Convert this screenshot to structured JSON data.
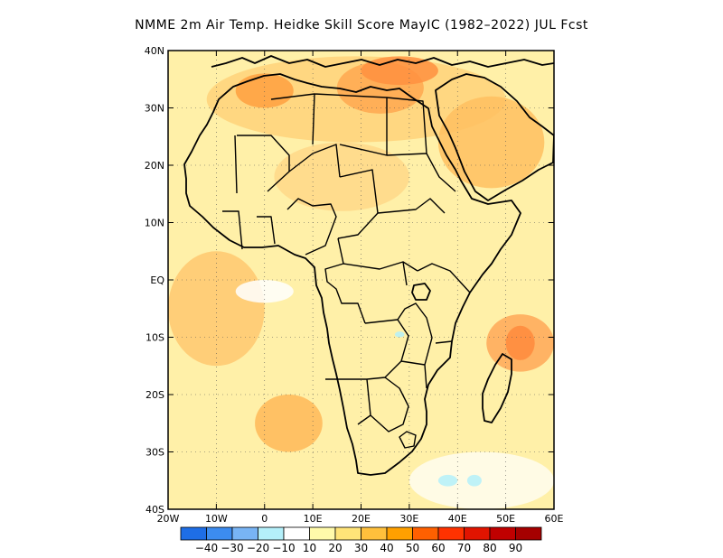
{
  "title": "NMME 2m Air Temp. Heidke Skill Score MayIC (1982–2022) JUL Fcst",
  "map": {
    "lon_range": [
      -20,
      60
    ],
    "lat_range": [
      -40,
      40
    ],
    "x_ticks": [
      {
        "lon": -20,
        "label": "20W"
      },
      {
        "lon": -10,
        "label": "10W"
      },
      {
        "lon": 0,
        "label": "0"
      },
      {
        "lon": 10,
        "label": "10E"
      },
      {
        "lon": 20,
        "label": "20E"
      },
      {
        "lon": 30,
        "label": "30E"
      },
      {
        "lon": 40,
        "label": "40E"
      },
      {
        "lon": 50,
        "label": "50E"
      },
      {
        "lon": 60,
        "label": "60E"
      }
    ],
    "y_ticks": [
      {
        "lat": 40,
        "label": "40N"
      },
      {
        "lat": 30,
        "label": "30N"
      },
      {
        "lat": 20,
        "label": "20N"
      },
      {
        "lat": 10,
        "label": "10N"
      },
      {
        "lat": 0,
        "label": "EQ"
      },
      {
        "lat": -10,
        "label": "10S"
      },
      {
        "lat": -20,
        "label": "20S"
      },
      {
        "lat": -30,
        "label": "30S"
      },
      {
        "lat": -40,
        "label": "40S"
      }
    ]
  },
  "colorbar": {
    "bins": [
      {
        "color": "#1e6ee6"
      },
      {
        "color": "#3c8cf0"
      },
      {
        "color": "#78b4f5"
      },
      {
        "color": "#b4f0fa"
      },
      {
        "color": "#ffffff"
      },
      {
        "color": "#fffaaa"
      },
      {
        "color": "#ffe478"
      },
      {
        "color": "#ffc03c"
      },
      {
        "color": "#ffa000"
      },
      {
        "color": "#ff6000"
      },
      {
        "color": "#ff3200"
      },
      {
        "color": "#e11400"
      },
      {
        "color": "#c00000"
      },
      {
        "color": "#a50000"
      }
    ],
    "labels": [
      "-40",
      "-30",
      "-20",
      "-10",
      "10",
      "20",
      "30",
      "40",
      "50",
      "60",
      "70",
      "80",
      "90"
    ]
  },
  "field": {
    "base_color": "#fff0a8",
    "patches": [
      {
        "name": "north-africa-band",
        "color": "#ffd27a",
        "lon": [
          -12,
          50
        ],
        "lat": [
          24,
          39
        ]
      },
      {
        "name": "libya-egypt-high",
        "color": "#ffa850",
        "lon": [
          15,
          33
        ],
        "lat": [
          29,
          38
        ]
      },
      {
        "name": "morocco-high",
        "color": "#ffa040",
        "lon": [
          -6,
          6
        ],
        "lat": [
          30,
          36
        ]
      },
      {
        "name": "mediterranean-high",
        "color": "#ff9040",
        "lon": [
          20,
          36
        ],
        "lat": [
          34,
          39
        ]
      },
      {
        "name": "arabia-warm",
        "color": "#ffc060",
        "lon": [
          36,
          58
        ],
        "lat": [
          16,
          32
        ]
      },
      {
        "name": "sahel-warm",
        "color": "#ffd888",
        "lon": [
          2,
          30
        ],
        "lat": [
          12,
          24
        ]
      },
      {
        "name": "atlantic-warm",
        "color": "#ffc870",
        "lon": [
          -20,
          0
        ],
        "lat": [
          -15,
          5
        ]
      },
      {
        "name": "atlantic-south-warm",
        "color": "#ffb858",
        "lon": [
          -2,
          12
        ],
        "lat": [
          -30,
          -20
        ]
      },
      {
        "name": "indian-ocean-warm",
        "color": "#ffa858",
        "lon": [
          46,
          60
        ],
        "lat": [
          -16,
          -6
        ]
      },
      {
        "name": "madagascar-hot",
        "color": "#ff8a3c",
        "lon": [
          50,
          56
        ],
        "lat": [
          -14,
          -8
        ]
      },
      {
        "name": "atlantic-white",
        "color": "#ffffff",
        "lon": [
          -6,
          6
        ],
        "lat": [
          -4,
          0
        ]
      },
      {
        "name": "southern-ocean-white",
        "color": "#fffdf0",
        "lon": [
          30,
          60
        ],
        "lat": [
          -40,
          -30
        ]
      },
      {
        "name": "cyan-patch-1",
        "color": "#b4f0fa",
        "lon": [
          36,
          40
        ],
        "lat": [
          -36,
          -34
        ]
      },
      {
        "name": "cyan-patch-2",
        "color": "#b4f0fa",
        "lon": [
          42,
          45
        ],
        "lat": [
          -36,
          -34
        ]
      },
      {
        "name": "cyan-patch-3",
        "color": "#b4f0fa",
        "lon": [
          27,
          29
        ],
        "lat": [
          -10,
          -9
        ]
      }
    ]
  }
}
